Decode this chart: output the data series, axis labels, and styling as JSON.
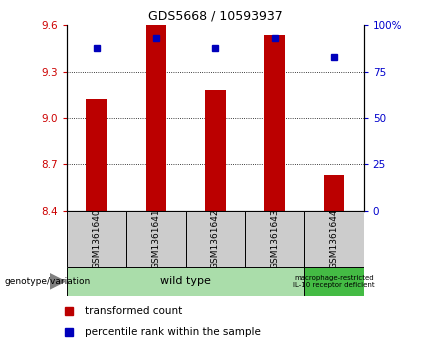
{
  "title": "GDS5668 / 10593937",
  "samples": [
    "GSM1361640",
    "GSM1361641",
    "GSM1361642",
    "GSM1361643",
    "GSM1361644"
  ],
  "transformed_count": [
    9.12,
    9.6,
    9.18,
    9.54,
    8.63
  ],
  "percentile_rank": [
    88,
    93,
    88,
    93,
    83
  ],
  "ylim_left": [
    8.4,
    9.6
  ],
  "ylim_right": [
    0,
    100
  ],
  "yticks_left": [
    8.4,
    8.7,
    9.0,
    9.3,
    9.6
  ],
  "yticks_right": [
    0,
    25,
    50,
    75,
    100
  ],
  "bar_color": "#bb0000",
  "dot_color": "#0000bb",
  "bar_width": 0.35,
  "wt_color": "#aaddaa",
  "mr_color": "#44bb44",
  "sample_box_color": "#cccccc",
  "genotype_row_label": "genotype/variation",
  "legend_items": [
    {
      "color": "#bb0000",
      "label": "transformed count"
    },
    {
      "color": "#0000bb",
      "label": "percentile rank within the sample"
    }
  ],
  "tick_color_left": "#cc0000",
  "tick_color_right": "#0000cc"
}
